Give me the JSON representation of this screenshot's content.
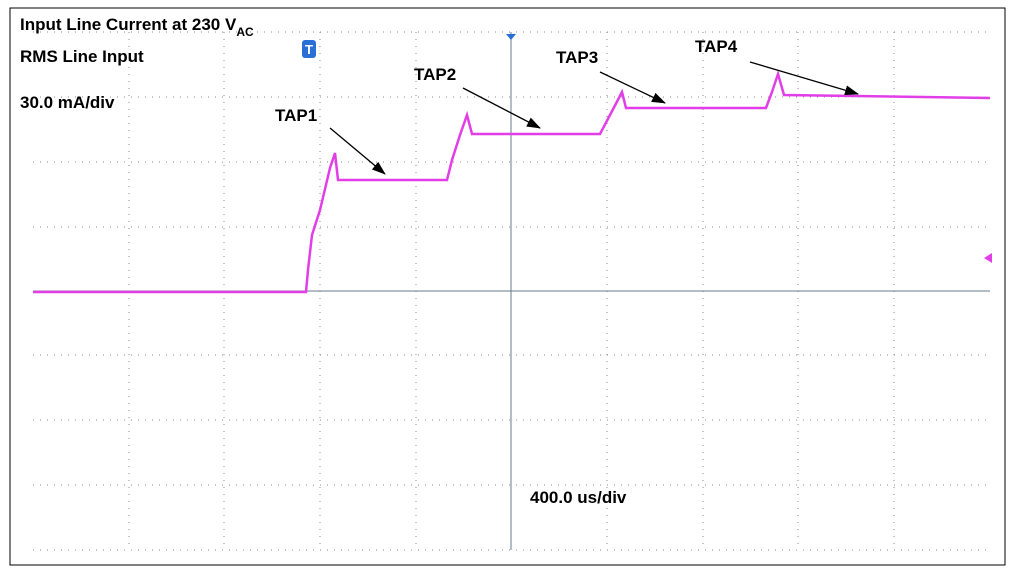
{
  "header": {
    "title": "Input Line Current at 230 V",
    "title_subscript": "AC",
    "subtitle": "RMS Line Input"
  },
  "scales": {
    "vertical": "30.0 mA/div",
    "horizontal": "400.0 us/div"
  },
  "trigger_marker": "T",
  "annotations": [
    "TAP1",
    "TAP2",
    "TAP3",
    "TAP4"
  ]
}
